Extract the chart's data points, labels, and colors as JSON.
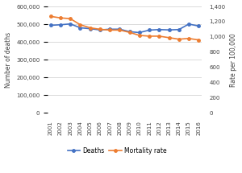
{
  "years": [
    2001,
    2002,
    2003,
    2004,
    2005,
    2006,
    2007,
    2008,
    2009,
    2010,
    2011,
    2012,
    2013,
    2014,
    2015,
    2016
  ],
  "deaths": [
    494000,
    497000,
    502000,
    480000,
    475000,
    468000,
    472000,
    472000,
    458000,
    453000,
    467000,
    470000,
    468000,
    470000,
    501000,
    490000
  ],
  "mortality_rate": [
    1270,
    1250,
    1240,
    1160,
    1120,
    1100,
    1090,
    1090,
    1060,
    1020,
    1010,
    1010,
    990,
    970,
    980,
    960
  ],
  "left_ylabel": "Number of deaths",
  "right_ylabel": "Rate per 100,000",
  "ylim_left": [
    0,
    600000
  ],
  "ylim_right": [
    0,
    1400
  ],
  "left_yticks": [
    0,
    100000,
    200000,
    300000,
    400000,
    500000,
    600000
  ],
  "right_yticks": [
    0,
    200,
    400,
    600,
    800,
    1000,
    1200,
    1400
  ],
  "deaths_color": "#4472C4",
  "mortality_color": "#ED7D31",
  "deaths_label": "Deaths",
  "mortality_label": "Mortality rate",
  "line_width": 1.2,
  "marker_size": 2.5,
  "grid_color": "#CCCCCC",
  "bg_color": "#FFFFFF",
  "font_color": "#404040",
  "label_fontsize": 5.5,
  "tick_fontsize": 5.0,
  "legend_fontsize": 5.5
}
